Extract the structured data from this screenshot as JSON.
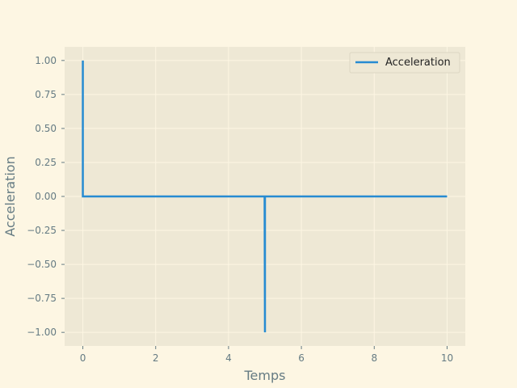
{
  "chart_data": {
    "type": "line",
    "title": "",
    "xlabel": "Temps",
    "ylabel": "Acceleration",
    "xlim": [
      -0.5,
      10.5
    ],
    "ylim": [
      -1.1,
      1.1
    ],
    "xticks": [
      0,
      2,
      4,
      6,
      8,
      10
    ],
    "yticks": [
      1.0,
      0.75,
      0.5,
      0.25,
      0.0,
      -0.25,
      -0.5,
      -0.75,
      -1.0
    ],
    "ytick_labels": [
      "1.00",
      "0.75",
      "0.50",
      "0.25",
      "0.00",
      "−0.25",
      "−0.50",
      "−0.75",
      "−1.00"
    ],
    "grid": true,
    "legend_position": "top-right",
    "series": [
      {
        "name": "Acceleration",
        "color": "#268bd2",
        "x": [
          0,
          0,
          0.02,
          4.99,
          5,
          5,
          5.01,
          10
        ],
        "y": [
          1,
          0,
          0,
          0,
          -1,
          0,
          0,
          0
        ]
      }
    ]
  },
  "colors": {
    "page_background": "#fdf6e3",
    "plot_background": "#eee8d5",
    "grid": "#fdf6e3",
    "text": "#657b83"
  }
}
